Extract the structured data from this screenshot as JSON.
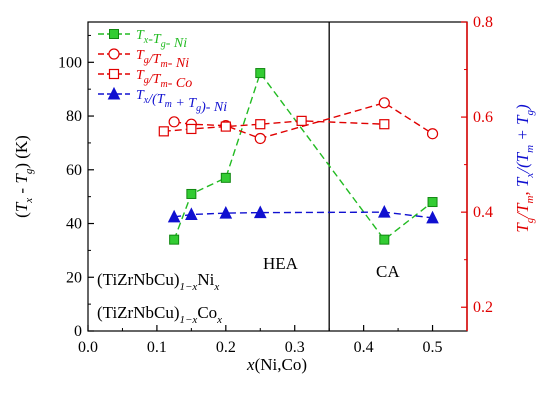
{
  "chart_data": {
    "type": "line",
    "xlabel": {
      "var": "x",
      "rest": "(Ni,Co)"
    },
    "ylabel_left": {
      "open": "(",
      "t1": "T",
      "s1": "x",
      "mid": " - ",
      "t2": "T",
      "s2": "g",
      "close": ") (K)"
    },
    "ylabel_right": {
      "p1": "T",
      "p1s": "g",
      "p2": "/T",
      "p2s": "m",
      "sep": ", ",
      "p3": "T",
      "p3s": "x",
      "p4": "/(T",
      "p4s": "m",
      "p5": " + T",
      "p5s": "g",
      "p6": ")"
    },
    "xlim": [
      0.0,
      0.55
    ],
    "ylim_left": [
      0,
      115
    ],
    "ylim_right": [
      0.15,
      0.8
    ],
    "x_ticks": [
      "0.0",
      "0.1",
      "0.2",
      "0.3",
      "0.4",
      "0.5"
    ],
    "y_ticks_left": [
      "0",
      "20",
      "40",
      "60",
      "80",
      "100"
    ],
    "y_ticks_right": [
      "0.2",
      "0.4",
      "0.6",
      "0.8"
    ],
    "vline_x": 0.35,
    "region_labels": [
      "HEA",
      "CA"
    ],
    "compositions": [
      {
        "base": "(TiZrNbCu)",
        "sub": "1−x",
        "el": "Ni",
        "elsub": "x"
      },
      {
        "base": "(TiZrNbCu)",
        "sub": "1−x",
        "el": "Co",
        "elsub": "x"
      }
    ],
    "series": [
      {
        "legend": {
          "a": "T",
          "as": "x",
          "b": "-T",
          "bs": "g",
          "c": "- Ni"
        },
        "axis": "left",
        "color": "#22bb22",
        "marker": "square-filled",
        "x": [
          0.125,
          0.15,
          0.2,
          0.25,
          0.43,
          0.5
        ],
        "y": [
          34,
          51,
          57,
          96,
          34,
          48
        ]
      },
      {
        "legend": {
          "a": "T",
          "as": "g",
          "b": "/T",
          "bs": "m",
          "c": "- Ni"
        },
        "axis": "right",
        "color": "#e00000",
        "marker": "circle-open",
        "x": [
          0.125,
          0.15,
          0.2,
          0.25,
          0.43,
          0.5
        ],
        "y": [
          0.59,
          0.585,
          0.582,
          0.555,
          0.63,
          0.565
        ]
      },
      {
        "legend": {
          "a": "T",
          "as": "g",
          "b": "/T",
          "bs": "m",
          "c": "- Co"
        },
        "axis": "right",
        "color": "#e00000",
        "marker": "square-open",
        "x": [
          0.11,
          0.15,
          0.2,
          0.25,
          0.31,
          0.43
        ],
        "y": [
          0.57,
          0.575,
          0.58,
          0.585,
          0.592,
          0.585
        ]
      },
      {
        "legend": {
          "a": "T",
          "as": "x",
          "b": "/(T",
          "bs": "m",
          "c": " + T",
          "cs": "g",
          "d": ")- Ni"
        },
        "axis": "right",
        "color": "#1010d0",
        "marker": "triangle-filled",
        "x": [
          0.125,
          0.15,
          0.2,
          0.25,
          0.43,
          0.5
        ],
        "y": [
          0.39,
          0.395,
          0.398,
          0.399,
          0.4,
          0.388
        ]
      }
    ]
  }
}
